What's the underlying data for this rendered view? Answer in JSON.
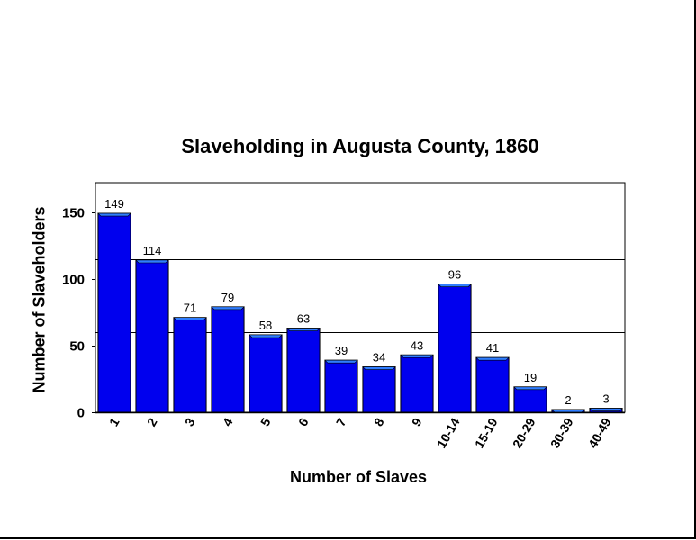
{
  "chart_data": {
    "type": "bar",
    "title": "Slaveholding in Augusta County, 1860",
    "xlabel": "Number of Slaves",
    "ylabel": "Number of Slaveholders",
    "categories": [
      "1",
      "2",
      "3",
      "4",
      "5",
      "6",
      "7",
      "8",
      "9",
      "10-14",
      "15-19",
      "20-29",
      "30-39",
      "40-49"
    ],
    "values": [
      149,
      114,
      71,
      79,
      58,
      63,
      39,
      34,
      43,
      96,
      41,
      19,
      2,
      3
    ],
    "ylim": [
      0,
      172
    ],
    "yticks": [
      0,
      50,
      100,
      150
    ],
    "gridlines": [
      60,
      115
    ],
    "grid": true,
    "bar_color": "#0000ee",
    "bar_top_color": "#2f7dff"
  }
}
